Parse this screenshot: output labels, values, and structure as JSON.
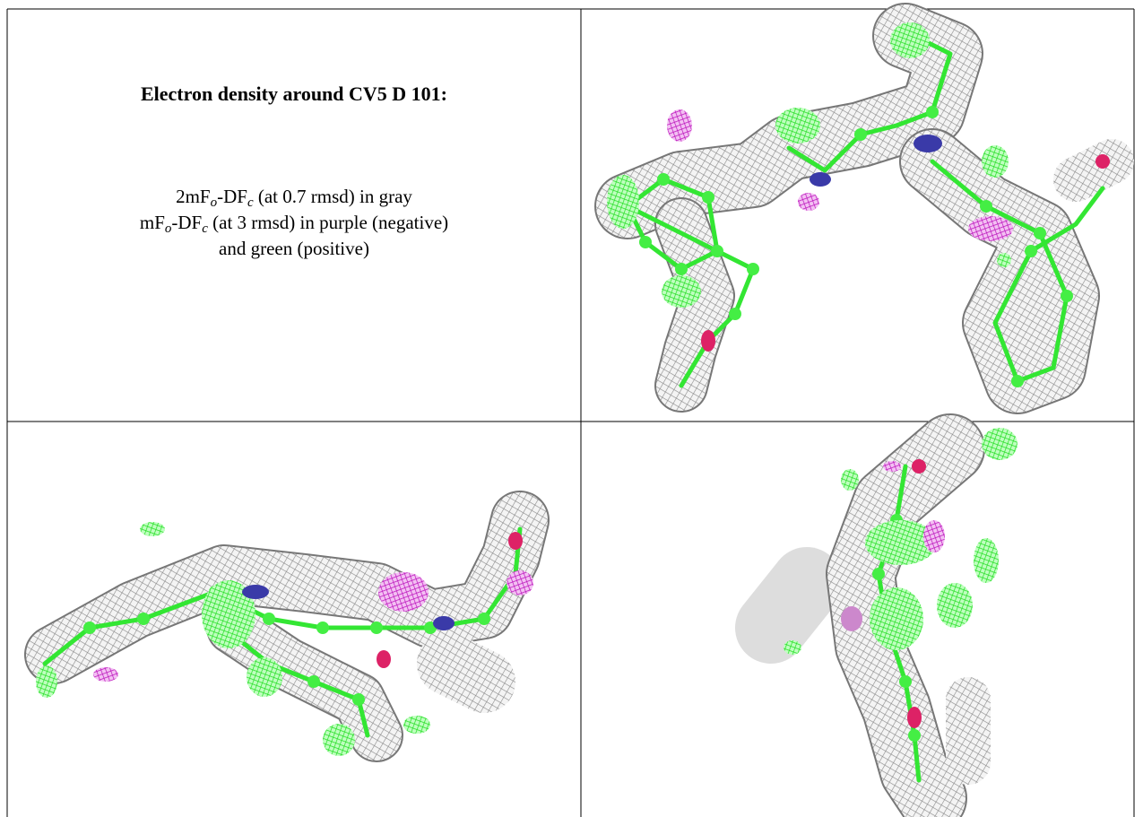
{
  "left_panel": {
    "title": "Electron density around CV5 D 101:",
    "lines": [
      [
        {
          "text": "2mF"
        },
        {
          "text": "o",
          "style": "subscript"
        },
        {
          "text": "-DF"
        },
        {
          "text": "c",
          "style": "subscript"
        },
        {
          "text": " (at 0.7 rmsd) in gray"
        }
      ],
      [
        {
          "text": "mF"
        },
        {
          "text": "o",
          "style": "subscript"
        },
        {
          "text": "-DF"
        },
        {
          "text": "c",
          "style": "subscript"
        },
        {
          "text": " (at 3 rmsd) in purple (negative)"
        }
      ],
      [
        {
          "text": "and green (positive)"
        }
      ]
    ]
  }
}
